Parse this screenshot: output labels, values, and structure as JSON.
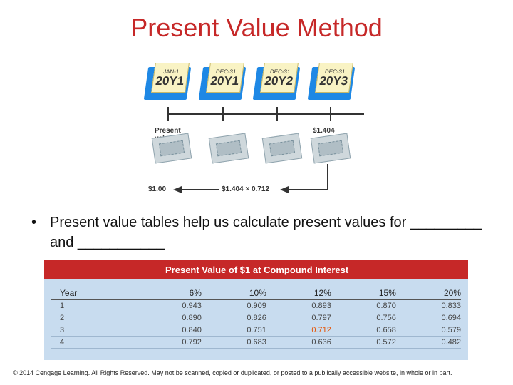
{
  "title": "Present Value Method",
  "calendars": [
    {
      "month": "JAN-1",
      "year": "20Y1"
    },
    {
      "month": "DEC-31",
      "year": "20Y1"
    },
    {
      "month": "DEC-31",
      "year": "20Y2"
    },
    {
      "month": "DEC-31",
      "year": "20Y3"
    }
  ],
  "timeline": {
    "present_value_label": "Present value of amount",
    "future_amount": "$1.404",
    "result": "$1.00",
    "formula": "$1.404 × 0.712"
  },
  "bullet": "Present value tables help us calculate present values for _________ and ___________",
  "table": {
    "title": "Present Value of $1 at Compound Interest",
    "headers": [
      "Year",
      "6%",
      "10%",
      "12%",
      "15%",
      "20%"
    ],
    "rows": [
      [
        "1",
        "0.943",
        "0.909",
        "0.893",
        "0.870",
        "0.833"
      ],
      [
        "2",
        "0.890",
        "0.826",
        "0.797",
        "0.756",
        "0.694"
      ],
      [
        "3",
        "0.840",
        "0.751",
        "0.712",
        "0.658",
        "0.579"
      ],
      [
        "4",
        "0.792",
        "0.683",
        "0.636",
        "0.572",
        "0.482"
      ]
    ],
    "highlight_color": "#e65100",
    "header_color": "#c62828"
  },
  "footer": "© 2014 Cengage Learning. All Rights Reserved. May not be scanned, copied or duplicated, or posted to a publically accessible website, in whole or in part."
}
